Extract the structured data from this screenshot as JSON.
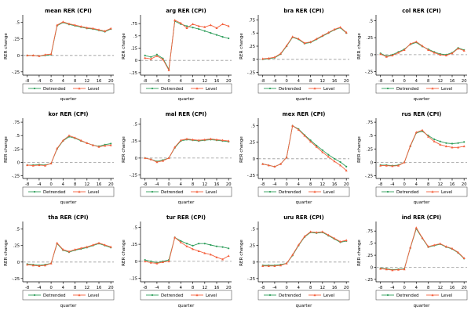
{
  "figure": {
    "background": "#ffffff",
    "colors": {
      "detrended": "#2e9e5b",
      "level": "#f4613e",
      "zero_line": "#999999",
      "axis": "#000000"
    },
    "legend_labels": [
      "Detrended",
      "Level"
    ]
  },
  "chart_data": [
    {
      "id": "mean",
      "type": "line",
      "title": "mean RER (CPI)",
      "xlabel": "quarter",
      "ylabel": "RER change",
      "xlim": [
        -9.5,
        21
      ],
      "ylim": [
        -0.3,
        0.58
      ],
      "xticks": [
        -8,
        -4,
        0,
        4,
        8,
        12,
        16,
        20
      ],
      "yticks": [
        -0.25,
        0,
        0.25,
        0.5
      ],
      "x": [
        -8,
        -6,
        -4,
        -2,
        0,
        2,
        4,
        6,
        8,
        10,
        12,
        14,
        16,
        18,
        20
      ],
      "zero_line": true,
      "series": [
        {
          "name": "Detrended",
          "color": "#2e9e5b",
          "values": [
            0.0,
            0.0,
            -0.01,
            0.0,
            0.01,
            0.45,
            0.5,
            0.47,
            0.45,
            0.43,
            0.41,
            0.4,
            0.38,
            0.36,
            0.4
          ]
        },
        {
          "name": "Level",
          "color": "#f4613e",
          "values": [
            0.0,
            0.0,
            -0.01,
            0.01,
            0.02,
            0.46,
            0.51,
            0.48,
            0.46,
            0.44,
            0.42,
            0.41,
            0.39,
            0.37,
            0.41
          ]
        }
      ]
    },
    {
      "id": "arg",
      "type": "line",
      "title": "arg RER (CPI)",
      "xlabel": "quarter",
      "ylabel": "RER change",
      "xlim": [
        -9.5,
        21
      ],
      "ylim": [
        -0.3,
        0.88
      ],
      "xticks": [
        -8,
        -4,
        0,
        4,
        8,
        12,
        16,
        20
      ],
      "yticks": [
        -0.25,
        0,
        0.25,
        0.5,
        0.75
      ],
      "x": [
        -8,
        -6,
        -4,
        -2,
        0,
        2,
        4,
        6,
        8,
        10,
        12,
        14,
        16,
        18,
        20
      ],
      "zero_line": true,
      "series": [
        {
          "name": "Detrended",
          "color": "#2e9e5b",
          "values": [
            0.1,
            0.07,
            0.12,
            0.04,
            -0.18,
            0.8,
            0.74,
            0.7,
            0.67,
            0.64,
            0.6,
            0.56,
            0.52,
            0.48,
            0.45
          ]
        },
        {
          "name": "Level",
          "color": "#f4613e",
          "values": [
            0.05,
            0.03,
            0.09,
            0.02,
            -0.2,
            0.82,
            0.76,
            0.66,
            0.74,
            0.7,
            0.68,
            0.72,
            0.66,
            0.74,
            0.7
          ]
        }
      ]
    },
    {
      "id": "bra",
      "type": "line",
      "title": "bra RER (CPI)",
      "xlabel": "quarter",
      "ylabel": "RER change",
      "xlim": [
        -9.5,
        21
      ],
      "ylim": [
        -0.3,
        0.8
      ],
      "xticks": [
        -8,
        -4,
        0,
        4,
        8,
        12,
        16,
        20
      ],
      "yticks": [
        -0.25,
        0,
        0.25,
        0.5,
        0.75
      ],
      "x": [
        -8,
        -6,
        -4,
        -2,
        0,
        2,
        4,
        6,
        8,
        10,
        12,
        14,
        16,
        18,
        20
      ],
      "zero_line": true,
      "series": [
        {
          "name": "Detrended",
          "color": "#2e9e5b",
          "values": [
            0.0,
            0.01,
            0.03,
            0.1,
            0.25,
            0.42,
            0.38,
            0.3,
            0.32,
            0.38,
            0.44,
            0.5,
            0.56,
            0.6,
            0.5
          ]
        },
        {
          "name": "Level",
          "color": "#f4613e",
          "values": [
            0.01,
            0.02,
            0.04,
            0.11,
            0.26,
            0.43,
            0.39,
            0.31,
            0.33,
            0.39,
            0.45,
            0.51,
            0.57,
            0.61,
            0.51
          ]
        }
      ]
    },
    {
      "id": "col",
      "type": "line",
      "title": "col RER (CPI)",
      "xlabel": "quarter",
      "ylabel": "RER change",
      "xlim": [
        -9.5,
        21
      ],
      "ylim": [
        -0.3,
        0.55
      ],
      "xticks": [
        -8,
        -4,
        0,
        4,
        8,
        12,
        16,
        20
      ],
      "yticks": [
        -0.25,
        0,
        0.25,
        0.5
      ],
      "x": [
        -8,
        -6,
        -4,
        -2,
        0,
        2,
        4,
        6,
        8,
        10,
        12,
        14,
        16,
        18,
        20
      ],
      "zero_line": true,
      "series": [
        {
          "name": "Detrended",
          "color": "#2e9e5b",
          "values": [
            0.02,
            -0.02,
            0.0,
            0.04,
            0.08,
            0.15,
            0.18,
            0.12,
            0.08,
            0.04,
            0.01,
            0.0,
            0.03,
            0.1,
            0.07
          ]
        },
        {
          "name": "Level",
          "color": "#f4613e",
          "values": [
            0.01,
            -0.03,
            -0.01,
            0.03,
            0.07,
            0.16,
            0.19,
            0.13,
            0.07,
            0.03,
            0.0,
            -0.01,
            0.02,
            0.09,
            0.06
          ]
        }
      ]
    },
    {
      "id": "kor",
      "type": "line",
      "title": "kor RER (CPI)",
      "xlabel": "quarter",
      "ylabel": "RER change",
      "xlim": [
        -9.5,
        21
      ],
      "ylim": [
        -0.3,
        0.78
      ],
      "xticks": [
        -8,
        -4,
        0,
        4,
        8,
        12,
        16,
        20
      ],
      "yticks": [
        -0.25,
        0,
        0.25,
        0.5,
        0.75
      ],
      "x": [
        -8,
        -6,
        -4,
        -2,
        0,
        2,
        4,
        6,
        8,
        10,
        12,
        14,
        16,
        18,
        20
      ],
      "zero_line": true,
      "series": [
        {
          "name": "Detrended",
          "color": "#2e9e5b",
          "values": [
            -0.05,
            -0.05,
            -0.04,
            -0.05,
            -0.02,
            0.25,
            0.4,
            0.48,
            0.45,
            0.4,
            0.36,
            0.32,
            0.3,
            0.33,
            0.35
          ]
        },
        {
          "name": "Level",
          "color": "#f4613e",
          "values": [
            -0.05,
            -0.06,
            -0.05,
            -0.06,
            -0.02,
            0.26,
            0.41,
            0.5,
            0.46,
            0.41,
            0.36,
            0.32,
            0.29,
            0.31,
            0.32
          ]
        }
      ]
    },
    {
      "id": "mal",
      "type": "line",
      "title": "mal RER (CPI)",
      "xlabel": "quarter",
      "ylabel": "RER change",
      "xlim": [
        -9.5,
        21
      ],
      "ylim": [
        -0.3,
        0.55
      ],
      "xticks": [
        -8,
        -4,
        0,
        4,
        8,
        12,
        16,
        20
      ],
      "yticks": [
        -0.25,
        0,
        0.25,
        0.5
      ],
      "x": [
        -8,
        -6,
        -4,
        -2,
        0,
        2,
        4,
        6,
        8,
        10,
        12,
        14,
        16,
        18,
        20
      ],
      "zero_line": true,
      "series": [
        {
          "name": "Detrended",
          "color": "#2e9e5b",
          "values": [
            0.0,
            -0.02,
            -0.05,
            -0.03,
            0.0,
            0.15,
            0.25,
            0.27,
            0.26,
            0.25,
            0.26,
            0.27,
            0.26,
            0.25,
            0.24
          ]
        },
        {
          "name": "Level",
          "color": "#f4613e",
          "values": [
            0.0,
            -0.02,
            -0.06,
            -0.04,
            0.0,
            0.16,
            0.26,
            0.28,
            0.27,
            0.26,
            0.27,
            0.28,
            0.27,
            0.26,
            0.25
          ]
        }
      ]
    },
    {
      "id": "mex",
      "type": "line",
      "title": "mex RER (CPI)",
      "xlabel": "quarter",
      "ylabel": "RER change",
      "xlim": [
        -9.5,
        21
      ],
      "ylim": [
        -0.3,
        0.58
      ],
      "xticks": [
        -8,
        -4,
        0,
        4,
        8,
        12,
        16,
        20
      ],
      "yticks": [
        -0.25,
        0,
        0.25,
        0.5
      ],
      "x": [
        -8,
        -6,
        -4,
        -2,
        0,
        2,
        4,
        6,
        8,
        10,
        12,
        14,
        16,
        18,
        20
      ],
      "zero_line": true,
      "series": [
        {
          "name": "Detrended",
          "color": "#2e9e5b",
          "values": [
            -0.08,
            -0.1,
            -0.12,
            -0.08,
            0.02,
            0.5,
            0.45,
            0.36,
            0.28,
            0.2,
            0.13,
            0.06,
            0.0,
            -0.05,
            -0.12
          ]
        },
        {
          "name": "Level",
          "color": "#f4613e",
          "values": [
            -0.08,
            -0.1,
            -0.12,
            -0.08,
            0.02,
            0.5,
            0.44,
            0.35,
            0.26,
            0.18,
            0.1,
            0.03,
            -0.04,
            -0.1,
            -0.18
          ]
        }
      ]
    },
    {
      "id": "rus",
      "type": "line",
      "title": "rus RER (CPI)",
      "xlabel": "quarter",
      "ylabel": "RER change",
      "xlim": [
        -9.5,
        21
      ],
      "ylim": [
        -0.3,
        0.78
      ],
      "xticks": [
        -8,
        -4,
        0,
        4,
        8,
        12,
        16,
        20
      ],
      "yticks": [
        -0.25,
        0,
        0.25,
        0.5,
        0.75
      ],
      "x": [
        -8,
        -6,
        -4,
        -2,
        0,
        2,
        4,
        6,
        8,
        10,
        12,
        14,
        16,
        18,
        20
      ],
      "zero_line": true,
      "series": [
        {
          "name": "Detrended",
          "color": "#2e9e5b",
          "values": [
            -0.05,
            -0.05,
            -0.06,
            -0.05,
            0.0,
            0.3,
            0.55,
            0.58,
            0.5,
            0.43,
            0.39,
            0.36,
            0.35,
            0.36,
            0.38
          ]
        },
        {
          "name": "Level",
          "color": "#f4613e",
          "values": [
            -0.06,
            -0.06,
            -0.07,
            -0.06,
            0.0,
            0.31,
            0.56,
            0.6,
            0.48,
            0.39,
            0.33,
            0.3,
            0.28,
            0.28,
            0.3
          ]
        }
      ]
    },
    {
      "id": "tha",
      "type": "line",
      "title": "tha RER (CPI)",
      "xlabel": "quarter",
      "ylabel": "RER change",
      "xlim": [
        -9.5,
        21
      ],
      "ylim": [
        -0.3,
        0.58
      ],
      "xticks": [
        -8,
        -4,
        0,
        4,
        8,
        12,
        16,
        20
      ],
      "yticks": [
        -0.25,
        0,
        0.25,
        0.5
      ],
      "x": [
        -8,
        -6,
        -4,
        -2,
        0,
        2,
        4,
        6,
        8,
        10,
        12,
        14,
        16,
        18,
        20
      ],
      "zero_line": true,
      "series": [
        {
          "name": "Detrended",
          "color": "#2e9e5b",
          "values": [
            -0.03,
            -0.04,
            -0.05,
            -0.04,
            -0.02,
            0.28,
            0.18,
            0.15,
            0.18,
            0.2,
            0.22,
            0.25,
            0.28,
            0.25,
            0.22
          ]
        },
        {
          "name": "Level",
          "color": "#f4613e",
          "values": [
            -0.04,
            -0.05,
            -0.06,
            -0.05,
            -0.02,
            0.29,
            0.19,
            0.16,
            0.19,
            0.21,
            0.23,
            0.26,
            0.29,
            0.26,
            0.23
          ]
        }
      ]
    },
    {
      "id": "tur",
      "type": "line",
      "title": "tur RER (CPI)",
      "xlabel": "quarter",
      "ylabel": "RER change",
      "xlim": [
        -9.5,
        21
      ],
      "ylim": [
        -0.3,
        0.55
      ],
      "xticks": [
        -8,
        -4,
        0,
        4,
        8,
        12,
        16,
        20
      ],
      "yticks": [
        -0.25,
        0,
        0.25,
        0.5
      ],
      "x": [
        -8,
        -6,
        -4,
        -2,
        0,
        2,
        4,
        6,
        8,
        10,
        12,
        14,
        16,
        18,
        20
      ],
      "zero_line": true,
      "series": [
        {
          "name": "Detrended",
          "color": "#2e9e5b",
          "values": [
            0.02,
            0.0,
            -0.02,
            0.0,
            0.02,
            0.35,
            0.3,
            0.26,
            0.23,
            0.26,
            0.26,
            0.24,
            0.22,
            0.21,
            0.19
          ]
        },
        {
          "name": "Level",
          "color": "#f4613e",
          "values": [
            0.0,
            -0.02,
            -0.03,
            -0.01,
            0.0,
            0.35,
            0.28,
            0.22,
            0.18,
            0.15,
            0.12,
            0.1,
            0.06,
            0.03,
            0.08
          ]
        }
      ]
    },
    {
      "id": "uru",
      "type": "line",
      "title": "uru RER (CPI)",
      "xlabel": "quarter",
      "ylabel": "RER change",
      "xlim": [
        -9.5,
        21
      ],
      "ylim": [
        -0.3,
        0.58
      ],
      "xticks": [
        -8,
        -4,
        0,
        4,
        8,
        12,
        16,
        20
      ],
      "yticks": [
        -0.25,
        0,
        0.25,
        0.5
      ],
      "x": [
        -8,
        -6,
        -4,
        -2,
        0,
        2,
        4,
        6,
        8,
        10,
        12,
        14,
        16,
        18,
        20
      ],
      "zero_line": true,
      "series": [
        {
          "name": "Detrended",
          "color": "#2e9e5b",
          "values": [
            -0.05,
            -0.05,
            -0.05,
            -0.04,
            -0.02,
            0.1,
            0.25,
            0.38,
            0.45,
            0.44,
            0.45,
            0.4,
            0.35,
            0.3,
            0.32
          ]
        },
        {
          "name": "Level",
          "color": "#f4613e",
          "values": [
            -0.06,
            -0.06,
            -0.06,
            -0.05,
            -0.02,
            0.11,
            0.26,
            0.39,
            0.46,
            0.45,
            0.46,
            0.41,
            0.36,
            0.31,
            0.33
          ]
        }
      ]
    },
    {
      "id": "ind",
      "type": "line",
      "title": "ind RER (CPI)",
      "xlabel": "quarter",
      "ylabel": "RER change",
      "xlim": [
        -9.5,
        21
      ],
      "ylim": [
        -0.3,
        0.9
      ],
      "xticks": [
        -8,
        -4,
        0,
        4,
        8,
        12,
        16,
        20
      ],
      "yticks": [
        -0.25,
        0,
        0.25,
        0.5,
        0.75
      ],
      "x": [
        -8,
        -6,
        -4,
        -2,
        0,
        2,
        4,
        6,
        8,
        10,
        12,
        14,
        16,
        18,
        20
      ],
      "zero_line": true,
      "series": [
        {
          "name": "Detrended",
          "color": "#2e9e5b",
          "values": [
            -0.02,
            -0.03,
            -0.05,
            -0.04,
            -0.03,
            0.4,
            0.8,
            0.6,
            0.42,
            0.45,
            0.48,
            0.42,
            0.38,
            0.3,
            0.18
          ]
        },
        {
          "name": "Level",
          "color": "#f4613e",
          "values": [
            -0.03,
            -0.04,
            -0.06,
            -0.05,
            -0.04,
            0.41,
            0.82,
            0.61,
            0.43,
            0.46,
            0.49,
            0.43,
            0.39,
            0.31,
            0.19
          ]
        }
      ]
    }
  ]
}
